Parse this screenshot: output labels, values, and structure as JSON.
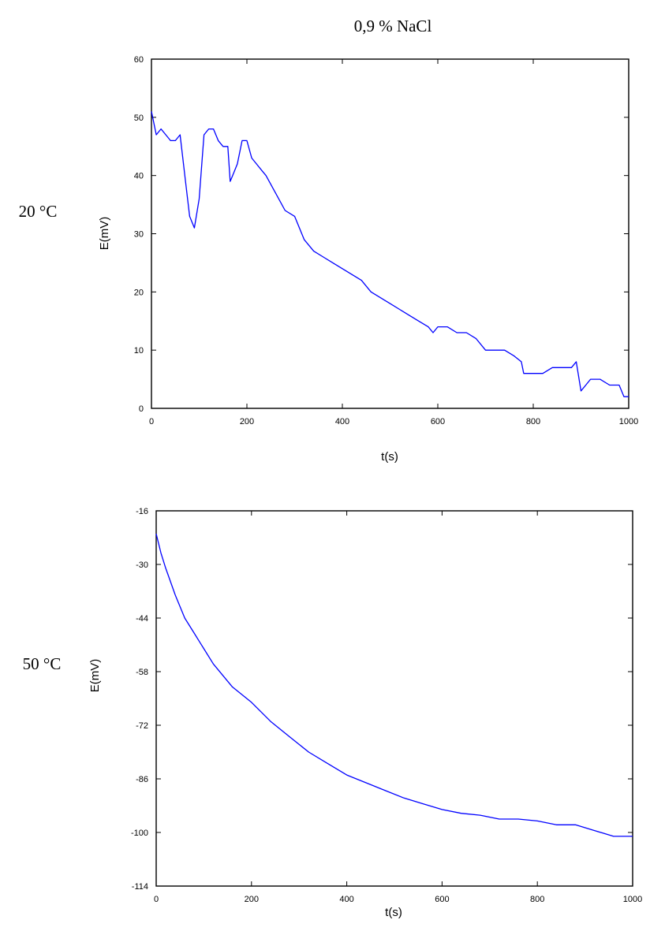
{
  "page_title": "0,9 % NaCl",
  "chart_data": [
    {
      "type": "line",
      "side_label": "20 °C",
      "title": "",
      "xlabel": "t(s)",
      "ylabel": "E(mV)",
      "xlim": [
        0,
        1000
      ],
      "ylim": [
        0,
        60
      ],
      "xticks": [
        "0",
        "200",
        "400",
        "600",
        "800",
        "1000"
      ],
      "yticks": [
        "0",
        "10",
        "20",
        "30",
        "40",
        "50",
        "60"
      ],
      "line_color": "#0000ff",
      "grid": false,
      "series": [
        {
          "x": [
            0,
            10,
            20,
            30,
            40,
            50,
            60,
            70,
            80,
            90,
            100,
            110,
            120,
            130,
            140,
            150,
            160,
            165,
            170,
            180,
            190,
            200,
            210,
            220,
            230,
            240,
            260,
            280,
            300,
            320,
            340,
            360,
            380,
            400,
            420,
            440,
            460,
            480,
            500,
            520,
            540,
            560,
            580,
            590,
            600,
            620,
            640,
            660,
            680,
            700,
            720,
            740,
            760,
            775,
            780,
            800,
            820,
            840,
            860,
            880,
            890,
            900,
            910,
            920,
            940,
            960,
            980,
            990,
            1000
          ],
          "y": [
            51,
            47,
            48,
            47,
            46,
            46,
            47,
            40,
            33,
            31,
            36,
            47,
            48,
            48,
            46,
            45,
            45,
            39,
            40,
            42,
            46,
            46,
            43,
            42,
            41,
            40,
            37,
            34,
            33,
            29,
            27,
            26,
            25,
            24,
            23,
            22,
            20,
            19,
            18,
            17,
            16,
            15,
            14,
            13,
            14,
            14,
            13,
            13,
            12,
            10,
            10,
            10,
            9,
            8,
            6,
            6,
            6,
            7,
            7,
            7,
            8,
            3,
            4,
            5,
            5,
            4,
            4,
            2,
            2
          ]
        }
      ]
    },
    {
      "type": "line",
      "side_label": "50 °C",
      "title": "",
      "xlabel": "t(s)",
      "ylabel": "E(mV)",
      "xlim": [
        0,
        1000
      ],
      "ylim": [
        -114,
        -16
      ],
      "xticks": [
        "0",
        "200",
        "400",
        "600",
        "800",
        "1000"
      ],
      "yticks": [
        "-114",
        "-100",
        "-86",
        "-72",
        "-58",
        "-44",
        "-30",
        "-16"
      ],
      "line_color": "#0000ff",
      "grid": false,
      "series": [
        {
          "x": [
            0,
            10,
            20,
            40,
            60,
            80,
            100,
            120,
            140,
            160,
            180,
            200,
            240,
            280,
            320,
            360,
            400,
            440,
            480,
            520,
            560,
            600,
            640,
            680,
            720,
            760,
            800,
            840,
            880,
            920,
            960,
            1000
          ],
          "y": [
            -22,
            -27,
            -31,
            -38,
            -44,
            -48,
            -52,
            -56,
            -59,
            -62,
            -64,
            -66,
            -71,
            -75,
            -79,
            -82,
            -85,
            -87,
            -89,
            -91,
            -92.5,
            -94,
            -95,
            -95.5,
            -96.5,
            -96.5,
            -97,
            -98,
            -98,
            -99.5,
            -101,
            -101
          ]
        }
      ]
    }
  ]
}
